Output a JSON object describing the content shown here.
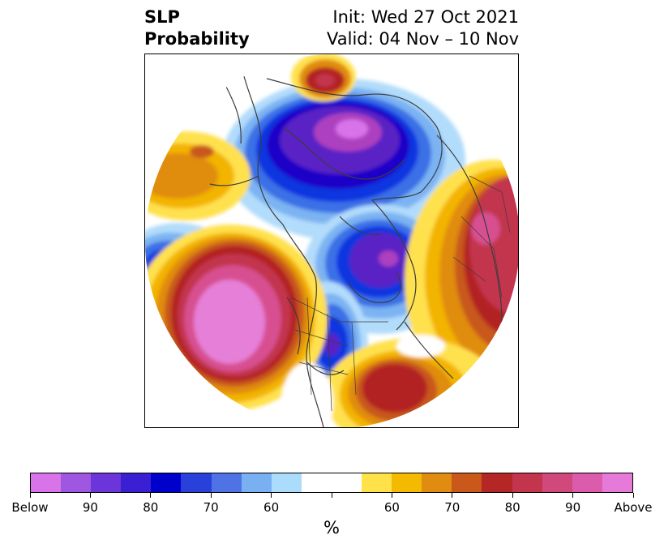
{
  "title": {
    "variable": "SLP",
    "product": "Probability",
    "init": "Init: Wed 27 Oct 2021",
    "valid": "Valid: 04 Nov – 10 Nov"
  },
  "map": {
    "projection": "north-polar-stereographic",
    "below_colors": [
      "#ad40bf",
      "#5a22c4",
      "#1a00c8",
      "#0e36e0",
      "#3a6fe6",
      "#7cb3f2",
      "#b2dcfb"
    ],
    "above_colors": [
      "#ffe14e",
      "#f3b400",
      "#e08c10",
      "#c8581a",
      "#b32323",
      "#c2344e",
      "#d75090",
      "#e67fd8"
    ]
  },
  "colorbar": {
    "colors": [
      "#d873e9",
      "#9f56e0",
      "#6b35d9",
      "#3b1fd2",
      "#0000cd",
      "#2a40da",
      "#4f73e5",
      "#78b0f2",
      "#acdcfb",
      "#ffffff",
      "#ffffff",
      "#ffe24a",
      "#f4ba00",
      "#e08c10",
      "#c9581a",
      "#b52626",
      "#c3344d",
      "#d1487a",
      "#db5cac",
      "#e67ad9"
    ],
    "tick_labels": [
      "Below",
      "90",
      "80",
      "70",
      "60",
      "",
      "60",
      "70",
      "80",
      "90",
      "Above"
    ],
    "unit": "%"
  }
}
